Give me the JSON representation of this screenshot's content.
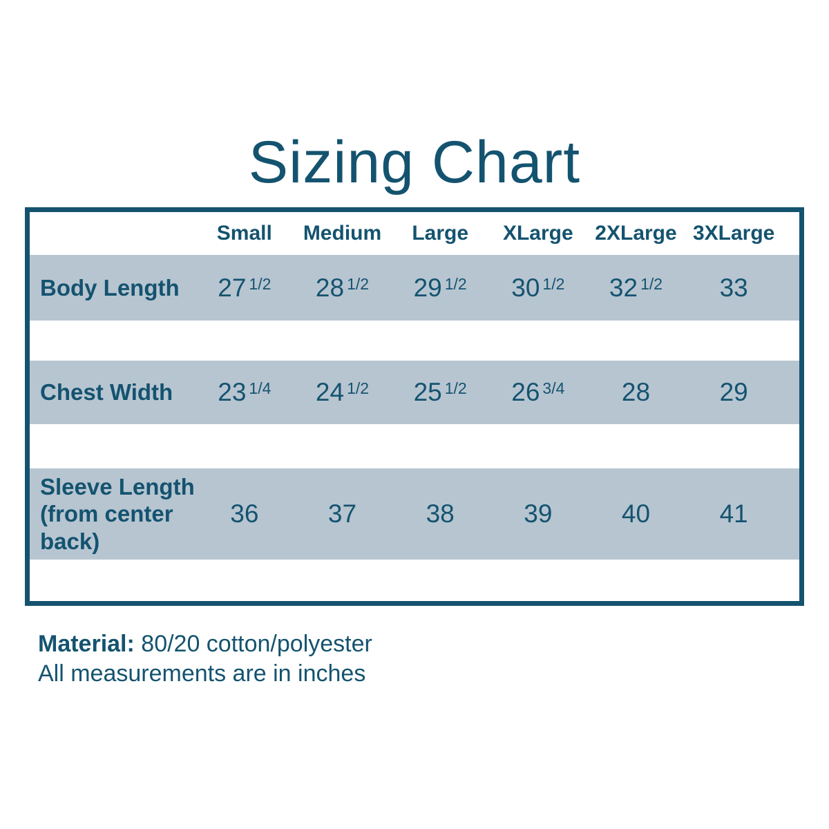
{
  "title": "Sizing Chart",
  "chart_data": {
    "type": "table",
    "title": "Sizing Chart",
    "columns": [
      "Small",
      "Medium",
      "Large",
      "XLarge",
      "2XLarge",
      "3XLarge"
    ],
    "rows": [
      {
        "label": "Body Length",
        "cells": [
          {
            "main": "27",
            "sup": "1/2"
          },
          {
            "main": "28",
            "sup": "1/2"
          },
          {
            "main": "29",
            "sup": "1/2"
          },
          {
            "main": "30",
            "sup": "1/2"
          },
          {
            "main": "32",
            "sup": "1/2"
          },
          {
            "main": "33",
            "sup": ""
          }
        ]
      },
      {
        "label": "Chest Width",
        "cells": [
          {
            "main": "23",
            "sup": "1/4"
          },
          {
            "main": "24",
            "sup": "1/2"
          },
          {
            "main": "25",
            "sup": "1/2"
          },
          {
            "main": "26",
            "sup": "3/4"
          },
          {
            "main": "28",
            "sup": ""
          },
          {
            "main": "29",
            "sup": ""
          }
        ]
      },
      {
        "label": "Sleeve Length (from center back)",
        "cells": [
          {
            "main": "36",
            "sup": ""
          },
          {
            "main": "37",
            "sup": ""
          },
          {
            "main": "38",
            "sup": ""
          },
          {
            "main": "39",
            "sup": ""
          },
          {
            "main": "40",
            "sup": ""
          },
          {
            "main": "41",
            "sup": ""
          }
        ]
      }
    ],
    "notes": [
      "Material: 80/20 cotton/polyester",
      "All measurements are in inches"
    ]
  },
  "footer": {
    "material_label": "Material:",
    "material_value": "80/20 cotton/polyester",
    "note": "All measurements are in inches"
  },
  "colors": {
    "text": "#14536F",
    "border": "#14536F",
    "row_background": "#B7C5D1",
    "page_background": "#FFFFFF"
  }
}
